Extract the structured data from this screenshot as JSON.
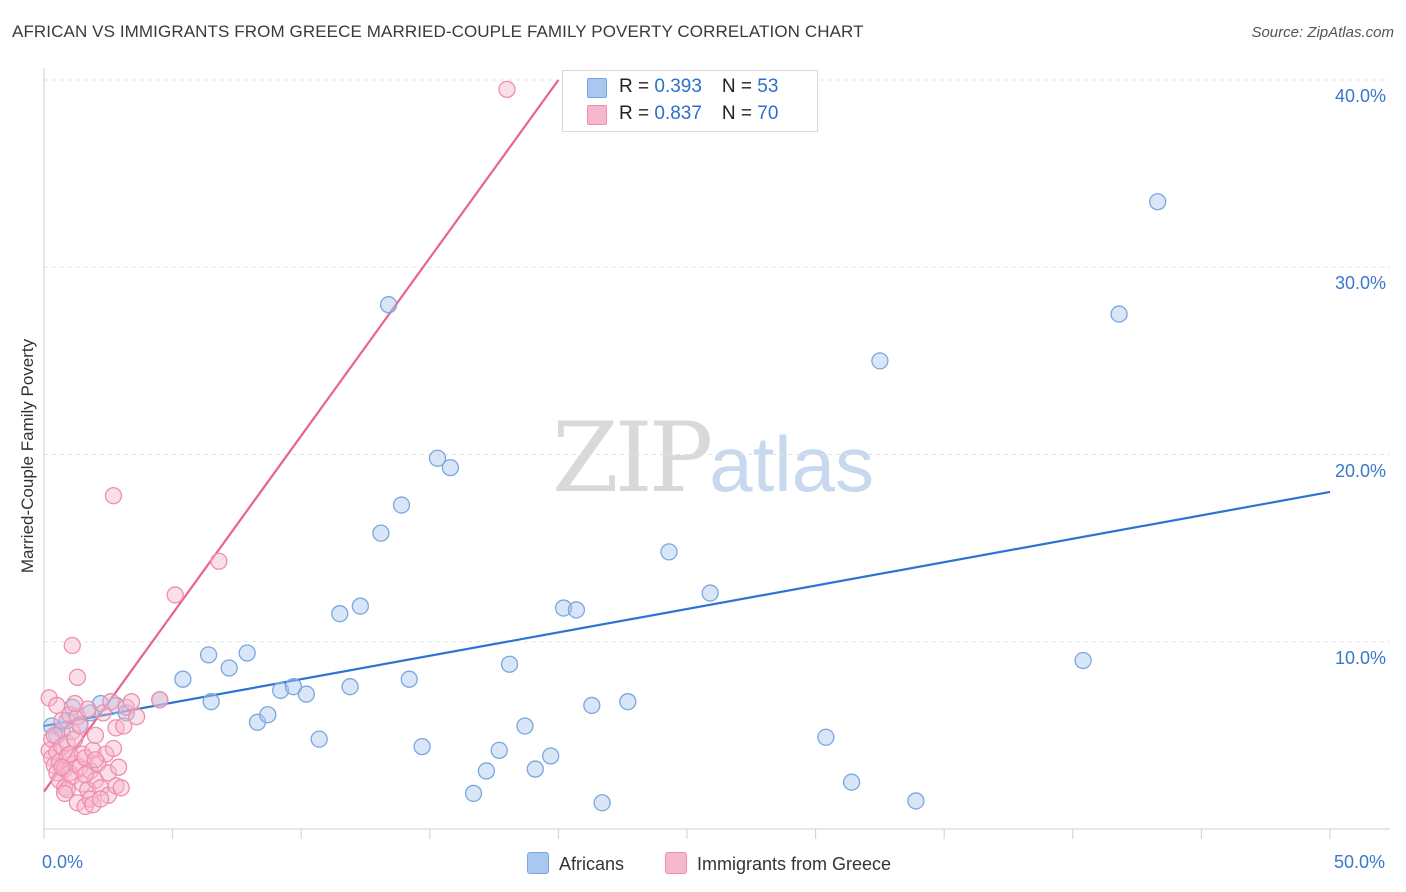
{
  "header": {
    "title": "AFRICAN VS IMMIGRANTS FROM GREECE MARRIED-COUPLE FAMILY POVERTY CORRELATION CHART",
    "source": "Source: ZipAtlas.com"
  },
  "watermark": {
    "zip": "ZIP",
    "atlas": "atlas"
  },
  "colors": {
    "blue_fill": "#a9c8f0",
    "blue_stroke": "#7aa7e0",
    "blue_line": "#2f73d0",
    "pink_fill": "#f6b8cb",
    "pink_stroke": "#ee8fae",
    "pink_line": "#e8638f",
    "grid": "#e3e3e3",
    "axis_text": "#3a78c9"
  },
  "legend_top": {
    "rows": [
      {
        "r_label": "R = ",
        "r_value": "0.393",
        "n_label": "N = ",
        "n_value": "53"
      },
      {
        "r_label": "R = ",
        "r_value": "0.837",
        "n_label": "N = ",
        "n_value": "70"
      }
    ]
  },
  "legend_bottom": {
    "africans": "Africans",
    "greece": "Immigrants from Greece"
  },
  "chart_data": {
    "type": "scatter",
    "title": "AFRICAN VS IMMIGRANTS FROM GREECE MARRIED-COUPLE FAMILY POVERTY CORRELATION CHART",
    "xlabel": "",
    "ylabel": "Married-Couple Family Poverty",
    "xlim": [
      0,
      50
    ],
    "ylim": [
      0,
      40
    ],
    "x_tick_labels": [
      "0.0%",
      "50.0%"
    ],
    "y_ticks": [
      10,
      20,
      30,
      40
    ],
    "y_tick_labels": [
      "10.0%",
      "20.0%",
      "30.0%",
      "40.0%"
    ],
    "grid": true,
    "series": [
      {
        "name": "Africans",
        "r": 0.393,
        "n": 53,
        "trend": {
          "x": [
            0,
            50
          ],
          "y": [
            5.5,
            18.0
          ]
        },
        "points": [
          [
            0.3,
            5.5
          ],
          [
            0.5,
            5.0
          ],
          [
            0.7,
            5.3
          ],
          [
            0.9,
            5.8
          ],
          [
            1.1,
            6.5
          ],
          [
            1.4,
            5.6
          ],
          [
            1.8,
            6.2
          ],
          [
            2.2,
            6.7
          ],
          [
            2.8,
            6.6
          ],
          [
            3.2,
            6.2
          ],
          [
            4.5,
            6.9
          ],
          [
            5.4,
            8.0
          ],
          [
            6.5,
            6.8
          ],
          [
            7.2,
            8.6
          ],
          [
            6.4,
            9.3
          ],
          [
            7.9,
            9.4
          ],
          [
            8.3,
            5.7
          ],
          [
            8.7,
            6.1
          ],
          [
            9.2,
            7.4
          ],
          [
            9.7,
            7.6
          ],
          [
            10.2,
            7.2
          ],
          [
            10.7,
            4.8
          ],
          [
            11.5,
            11.5
          ],
          [
            11.9,
            7.6
          ],
          [
            12.3,
            11.9
          ],
          [
            13.1,
            15.8
          ],
          [
            13.4,
            28.0
          ],
          [
            13.9,
            17.3
          ],
          [
            14.2,
            8.0
          ],
          [
            14.7,
            4.4
          ],
          [
            15.3,
            19.8
          ],
          [
            15.8,
            19.3
          ],
          [
            16.7,
            1.9
          ],
          [
            17.2,
            3.1
          ],
          [
            17.7,
            4.2
          ],
          [
            18.1,
            8.8
          ],
          [
            18.7,
            5.5
          ],
          [
            19.1,
            3.2
          ],
          [
            19.7,
            3.9
          ],
          [
            20.2,
            11.8
          ],
          [
            20.7,
            11.7
          ],
          [
            21.3,
            6.6
          ],
          [
            21.7,
            1.4
          ],
          [
            22.7,
            6.8
          ],
          [
            24.3,
            14.8
          ],
          [
            25.9,
            12.6
          ],
          [
            30.4,
            4.9
          ],
          [
            31.4,
            2.5
          ],
          [
            32.5,
            25.0
          ],
          [
            33.9,
            1.5
          ],
          [
            40.4,
            9.0
          ],
          [
            41.8,
            27.5
          ],
          [
            43.3,
            33.5
          ]
        ]
      },
      {
        "name": "Immigrants from Greece",
        "r": 0.837,
        "n": 70,
        "trend": {
          "x": [
            0,
            20
          ],
          "y": [
            2.0,
            40.0
          ]
        },
        "points": [
          [
            0.2,
            7.0
          ],
          [
            0.2,
            4.2
          ],
          [
            0.3,
            3.8
          ],
          [
            0.3,
            4.8
          ],
          [
            0.4,
            3.4
          ],
          [
            0.4,
            5.0
          ],
          [
            0.5,
            3.0
          ],
          [
            0.5,
            4.1
          ],
          [
            0.6,
            2.6
          ],
          [
            0.6,
            3.6
          ],
          [
            0.7,
            4.4
          ],
          [
            0.7,
            5.8
          ],
          [
            0.8,
            3.2
          ],
          [
            0.8,
            2.2
          ],
          [
            0.9,
            3.9
          ],
          [
            0.9,
            4.6
          ],
          [
            1.0,
            6.1
          ],
          [
            1.0,
            3.0
          ],
          [
            1.1,
            5.2
          ],
          [
            1.1,
            2.8
          ],
          [
            1.2,
            4.8
          ],
          [
            1.2,
            3.5
          ],
          [
            1.3,
            6.0
          ],
          [
            1.3,
            1.4
          ],
          [
            1.4,
            3.3
          ],
          [
            1.4,
            5.5
          ],
          [
            1.5,
            2.4
          ],
          [
            1.5,
            4.0
          ],
          [
            1.6,
            1.2
          ],
          [
            1.6,
            3.8
          ],
          [
            1.7,
            6.4
          ],
          [
            1.7,
            2.1
          ],
          [
            1.8,
            1.6
          ],
          [
            1.8,
            3.1
          ],
          [
            1.9,
            4.2
          ],
          [
            1.9,
            1.3
          ],
          [
            2.0,
            2.6
          ],
          [
            2.0,
            5.0
          ],
          [
            2.1,
            3.5
          ],
          [
            2.2,
            2.2
          ],
          [
            2.3,
            6.2
          ],
          [
            2.4,
            4.0
          ],
          [
            2.5,
            1.8
          ],
          [
            2.5,
            3.0
          ],
          [
            2.6,
            6.8
          ],
          [
            2.7,
            4.3
          ],
          [
            2.8,
            2.3
          ],
          [
            2.8,
            5.4
          ],
          [
            2.9,
            3.3
          ],
          [
            3.0,
            2.2
          ],
          [
            3.1,
            5.5
          ],
          [
            3.2,
            6.5
          ],
          [
            3.4,
            6.8
          ],
          [
            3.6,
            6.0
          ],
          [
            1.1,
            9.8
          ],
          [
            1.3,
            8.1
          ],
          [
            2.7,
            17.8
          ],
          [
            5.1,
            12.5
          ],
          [
            6.8,
            14.3
          ],
          [
            18.0,
            39.5
          ],
          [
            0.5,
            6.6
          ],
          [
            0.9,
            2.1
          ],
          [
            1.0,
            4.0
          ],
          [
            1.2,
            6.7
          ],
          [
            1.6,
            2.9
          ],
          [
            2.2,
            1.6
          ],
          [
            0.7,
            3.3
          ],
          [
            0.8,
            1.9
          ],
          [
            4.5,
            6.9
          ],
          [
            2.0,
            3.7
          ]
        ]
      }
    ]
  }
}
